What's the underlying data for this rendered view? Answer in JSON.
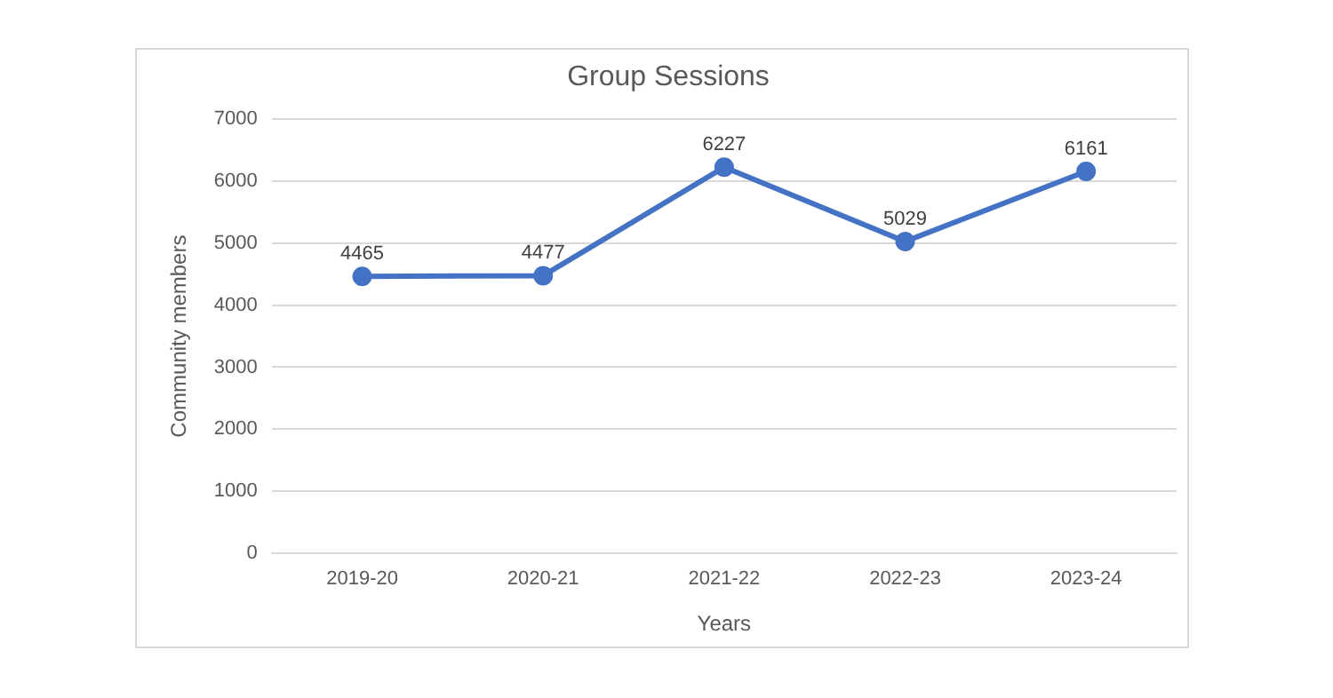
{
  "chart_data": {
    "type": "line",
    "title": "Group Sessions",
    "xlabel": "Years",
    "ylabel": "Community members",
    "categories": [
      "2019-20",
      "2020-21",
      "2021-22",
      "2022-23",
      "2023-24"
    ],
    "series": [
      {
        "color": "#4472c4",
        "values": [
          4465,
          4477,
          6227,
          5029,
          6161
        ]
      }
    ],
    "ylim": [
      0,
      7000
    ],
    "yticks": [
      0,
      1000,
      2000,
      3000,
      4000,
      5000,
      6000,
      7000
    ],
    "grid": "y",
    "legend": false,
    "marker": "circle",
    "line_style": "solid",
    "data_labels": true
  }
}
